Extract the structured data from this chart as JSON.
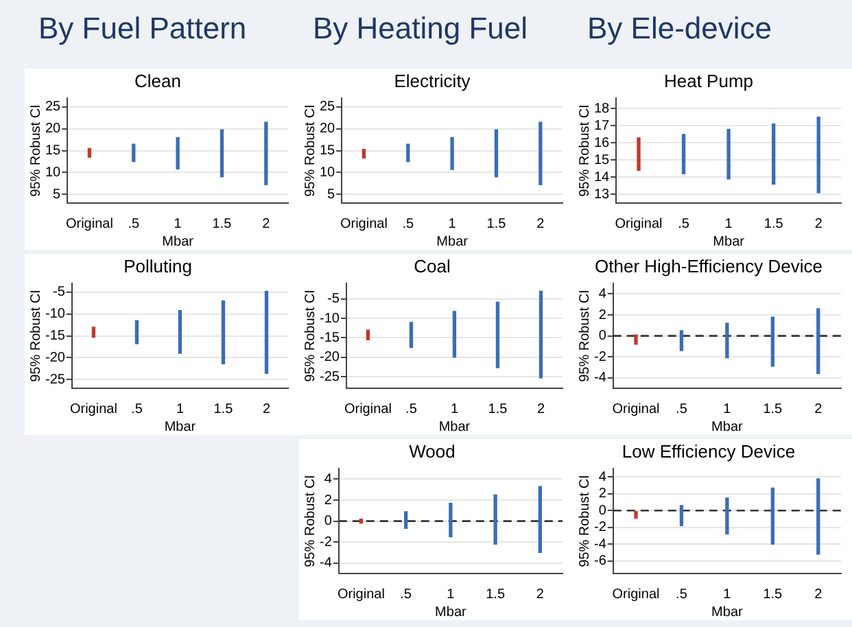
{
  "chart_data": [
    {
      "type": "bar",
      "title": "Clean",
      "annotations": [
        "By Fuel Pattern"
      ],
      "xlabel": "Mbar",
      "ylabel": "95% Robust CI",
      "categories": [
        "Original",
        ".5",
        "1",
        "1.5",
        "2"
      ],
      "base": [
        13.5,
        12.5,
        10.8,
        9,
        7.2
      ],
      "values": [
        2,
        4,
        7.2,
        10.8,
        14.3
      ],
      "colors": [
        "#c0392b",
        "#3a6db5",
        "#3a6db5",
        "#3a6db5",
        "#3a6db5"
      ],
      "ylim": [
        3,
        27
      ],
      "yticks": [
        5,
        10,
        15,
        20,
        25
      ],
      "grid": "y"
    },
    {
      "type": "bar",
      "title": "Electricity",
      "annotations": [
        "By Heating Fuel"
      ],
      "xlabel": "Mbar",
      "ylabel": "95% Robust CI",
      "categories": [
        "Original",
        ".5",
        "1",
        "1.5",
        "2"
      ],
      "base": [
        13.3,
        12.5,
        10.7,
        9,
        7.2
      ],
      "values": [
        2,
        4,
        7.3,
        10.8,
        14.3
      ],
      "colors": [
        "#c0392b",
        "#3a6db5",
        "#3a6db5",
        "#3a6db5",
        "#3a6db5"
      ],
      "ylim": [
        3,
        27
      ],
      "yticks": [
        5,
        10,
        15,
        20,
        25
      ],
      "grid": "y"
    },
    {
      "type": "bar",
      "title": "Heat Pump",
      "annotations": [
        "By Ele-device"
      ],
      "xlabel": "Mbar",
      "ylabel": "95% Robust CI",
      "categories": [
        "Original",
        ".5",
        "1",
        "1.5",
        "2"
      ],
      "base": [
        14.4,
        14.2,
        13.9,
        13.6,
        13.1
      ],
      "values": [
        1.9,
        2.3,
        2.9,
        3.5,
        4.4
      ],
      "colors": [
        "#c0392b",
        "#3a6db5",
        "#3a6db5",
        "#3a6db5",
        "#3a6db5"
      ],
      "ylim": [
        12.5,
        18.6
      ],
      "yticks": [
        13,
        14,
        15,
        16,
        17,
        18
      ],
      "grid": "y"
    },
    {
      "type": "bar",
      "title": "Polluting",
      "xlabel": "Mbar",
      "ylabel": "95% Robust CI",
      "categories": [
        "Original",
        ".5",
        "1",
        "1.5",
        "2"
      ],
      "base": [
        -15.3,
        -16.8,
        -19,
        -21.4,
        -23.6
      ],
      "values": [
        2.3,
        5.3,
        9.8,
        14.4,
        18.8
      ],
      "colors": [
        "#c0392b",
        "#3a6db5",
        "#3a6db5",
        "#3a6db5",
        "#3a6db5"
      ],
      "ylim": [
        -27,
        -3
      ],
      "yticks": [
        -25,
        -20,
        -15,
        -10,
        -5
      ],
      "grid": "y"
    },
    {
      "type": "bar",
      "title": "Coal",
      "xlabel": "Mbar",
      "ylabel": "95% Robust CI",
      "categories": [
        "Original",
        ".5",
        "1",
        "1.5",
        "2"
      ],
      "base": [
        -15.5,
        -17.5,
        -20,
        -22.7,
        -25.3
      ],
      "values": [
        2.5,
        6.5,
        11.8,
        16.9,
        22.3
      ],
      "colors": [
        "#c0392b",
        "#3a6db5",
        "#3a6db5",
        "#3a6db5",
        "#3a6db5"
      ],
      "ylim": [
        -28,
        -1
      ],
      "yticks": [
        -25,
        -20,
        -15,
        -10,
        -5
      ],
      "grid": "y"
    },
    {
      "type": "bar",
      "title": "Other High-Efficiency Device",
      "xlabel": "Mbar",
      "ylabel": "95% Robust CI",
      "categories": [
        "Original",
        ".5",
        "1",
        "1.5",
        "2"
      ],
      "base": [
        -0.8,
        -1.4,
        -2.1,
        -2.9,
        -3.6
      ],
      "values": [
        0.9,
        1.9,
        3.3,
        4.7,
        6.2
      ],
      "colors": [
        "#c0392b",
        "#3a6db5",
        "#3a6db5",
        "#3a6db5",
        "#3a6db5"
      ],
      "ylim": [
        -5,
        5
      ],
      "yticks": [
        -4,
        -2,
        0,
        2,
        4
      ],
      "grid": "y",
      "ref_lines": [
        {
          "axis": "y",
          "value": 0,
          "line_style": "dashed",
          "color": "#333333"
        }
      ]
    },
    {
      "type": "bar",
      "title": "Wood",
      "xlabel": "Mbar",
      "ylabel": "95% Robust CI",
      "categories": [
        "Original",
        ".5",
        "1",
        "1.5",
        "2"
      ],
      "base": [
        -0.2,
        -0.7,
        -1.5,
        -2.2,
        -3
      ],
      "values": [
        0.4,
        1.6,
        3.2,
        4.7,
        6.3
      ],
      "colors": [
        "#c0392b",
        "#3a6db5",
        "#3a6db5",
        "#3a6db5",
        "#3a6db5"
      ],
      "ylim": [
        -5,
        5
      ],
      "yticks": [
        -4,
        -2,
        0,
        2,
        4
      ],
      "grid": "y",
      "ref_lines": [
        {
          "axis": "y",
          "value": 0,
          "line_style": "dashed",
          "color": "#333333"
        }
      ]
    },
    {
      "type": "bar",
      "title": "Low Efficiency Device",
      "xlabel": "Mbar",
      "ylabel": "95% Robust CI",
      "categories": [
        "Original",
        ".5",
        "1",
        "1.5",
        "2"
      ],
      "base": [
        -0.9,
        -1.8,
        -2.8,
        -4,
        -5.2
      ],
      "values": [
        0.8,
        2.4,
        4.3,
        6.7,
        9
      ],
      "colors": [
        "#c0392b",
        "#3a6db5",
        "#3a6db5",
        "#3a6db5",
        "#3a6db5"
      ],
      "ylim": [
        -7.5,
        5
      ],
      "yticks": [
        -6,
        -4,
        -2,
        0,
        2,
        4
      ],
      "grid": "y",
      "ref_lines": [
        {
          "axis": "y",
          "value": 0,
          "line_style": "dashed",
          "color": "#333333"
        }
      ]
    }
  ]
}
